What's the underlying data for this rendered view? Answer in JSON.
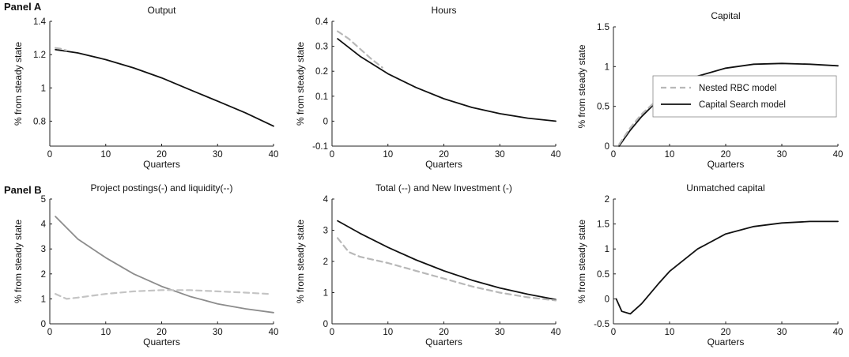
{
  "panel_labels": [
    "Panel A",
    "Panel B"
  ],
  "chart_data": [
    {
      "type": "line",
      "title": "Output",
      "xlabel": "Quarters",
      "ylabel": "% from steady state",
      "xlim": [
        0,
        40
      ],
      "ylim": [
        0.65,
        1.4
      ],
      "xticks": [
        "0",
        "10",
        "20",
        "30",
        "40"
      ],
      "yticks": [
        "0.8",
        "1",
        "1.2",
        "1.4"
      ],
      "series": [
        {
          "style": "solid",
          "color": "#111111",
          "x": [
            1,
            5,
            10,
            15,
            20,
            25,
            30,
            35,
            40
          ],
          "y": [
            1.23,
            1.21,
            1.17,
            1.12,
            1.06,
            0.99,
            0.92,
            0.85,
            0.77
          ]
        },
        {
          "style": "dashed",
          "color": "#b8b8b8",
          "x": [
            1,
            2,
            3
          ],
          "y": [
            1.24,
            1.235,
            1.225
          ]
        }
      ]
    },
    {
      "type": "line",
      "title": "Hours",
      "xlabel": "Quarters",
      "ylabel": "% from steady state",
      "xlim": [
        0,
        40
      ],
      "ylim": [
        -0.1,
        0.4
      ],
      "xticks": [
        "0",
        "10",
        "20",
        "30",
        "40"
      ],
      "yticks": [
        "-0.1",
        "0",
        "0.1",
        "0.2",
        "0.3",
        "0.4"
      ],
      "series": [
        {
          "style": "solid",
          "color": "#111111",
          "x": [
            1,
            5,
            10,
            15,
            20,
            25,
            30,
            35,
            40
          ],
          "y": [
            0.33,
            0.26,
            0.19,
            0.135,
            0.09,
            0.055,
            0.03,
            0.012,
            0.0
          ]
        },
        {
          "style": "dashed",
          "color": "#b8b8b8",
          "x": [
            1,
            3,
            5,
            7,
            9
          ],
          "y": [
            0.36,
            0.33,
            0.29,
            0.25,
            0.215
          ]
        }
      ]
    },
    {
      "type": "line",
      "title": "Capital",
      "xlabel": "Quarters",
      "ylabel": "% from steady state",
      "xlim": [
        0,
        40
      ],
      "ylim": [
        0,
        1.5
      ],
      "xticks": [
        "0",
        "10",
        "20",
        "30",
        "40"
      ],
      "yticks": [
        "0",
        "0.5",
        "1",
        "1.5"
      ],
      "legend": {
        "position": "center-right",
        "entries": [
          "Nested RBC model",
          "Capital Search model"
        ]
      },
      "series": [
        {
          "style": "solid",
          "color": "#111111",
          "x": [
            1,
            3,
            5,
            8,
            10,
            15,
            20,
            25,
            30,
            35,
            40
          ],
          "y": [
            0.0,
            0.2,
            0.37,
            0.58,
            0.7,
            0.88,
            0.98,
            1.03,
            1.04,
            1.03,
            1.01
          ]
        },
        {
          "style": "dashed",
          "color": "#b8b8b8",
          "x": [
            1,
            3,
            5,
            7
          ],
          "y": [
            0.02,
            0.23,
            0.4,
            0.53
          ]
        }
      ]
    },
    {
      "type": "line",
      "title": "Project postings(-) and liquidity(--)",
      "xlabel": "Quarters",
      "ylabel": "% from steady state",
      "xlim": [
        0,
        40
      ],
      "ylim": [
        0,
        5
      ],
      "xticks": [
        "0",
        "10",
        "20",
        "30",
        "40"
      ],
      "yticks": [
        "0",
        "1",
        "2",
        "3",
        "4",
        "5"
      ],
      "series": [
        {
          "style": "solid",
          "color": "#8c8c8c",
          "x": [
            1,
            5,
            10,
            15,
            20,
            25,
            30,
            35,
            40
          ],
          "y": [
            4.3,
            3.4,
            2.65,
            2.0,
            1.5,
            1.1,
            0.8,
            0.6,
            0.45
          ]
        },
        {
          "style": "dashed",
          "color": "#c4c4c4",
          "x": [
            1,
            3,
            5,
            10,
            15,
            20,
            25,
            30,
            35,
            39
          ],
          "y": [
            1.2,
            1.0,
            1.05,
            1.2,
            1.3,
            1.35,
            1.35,
            1.3,
            1.25,
            1.2
          ]
        }
      ]
    },
    {
      "type": "line",
      "title": "Total (--) and New Investment (-)",
      "xlabel": "Quarters",
      "ylabel": "% from steady state",
      "xlim": [
        0,
        40
      ],
      "ylim": [
        0,
        4
      ],
      "xticks": [
        "0",
        "10",
        "20",
        "30",
        "40"
      ],
      "yticks": [
        "0",
        "1",
        "2",
        "3",
        "4"
      ],
      "series": [
        {
          "style": "solid",
          "color": "#111111",
          "x": [
            1,
            5,
            10,
            15,
            20,
            25,
            30,
            35,
            40
          ],
          "y": [
            3.3,
            2.9,
            2.45,
            2.05,
            1.7,
            1.4,
            1.15,
            0.95,
            0.78
          ]
        },
        {
          "style": "dashed",
          "color": "#b8b8b8",
          "x": [
            1,
            3,
            5,
            10,
            15,
            20,
            25,
            30,
            35,
            40
          ],
          "y": [
            2.75,
            2.3,
            2.15,
            1.95,
            1.7,
            1.45,
            1.2,
            1.0,
            0.85,
            0.75
          ]
        }
      ]
    },
    {
      "type": "line",
      "title": "Unmatched capital",
      "xlabel": "Quarters",
      "ylabel": "% from steady state",
      "xlim": [
        0,
        40
      ],
      "ylim": [
        -0.5,
        2
      ],
      "xticks": [
        "0",
        "10",
        "20",
        "30",
        "40"
      ],
      "yticks": [
        "-0.5",
        "0",
        "0.5",
        "1",
        "1.5",
        "2"
      ],
      "series": [
        {
          "style": "solid",
          "color": "#111111",
          "x": [
            0.5,
            1.5,
            3,
            5,
            8,
            10,
            15,
            20,
            25,
            30,
            35,
            40
          ],
          "y": [
            0.0,
            -0.25,
            -0.3,
            -0.1,
            0.3,
            0.55,
            1.0,
            1.3,
            1.45,
            1.52,
            1.55,
            1.55
          ]
        }
      ]
    }
  ]
}
